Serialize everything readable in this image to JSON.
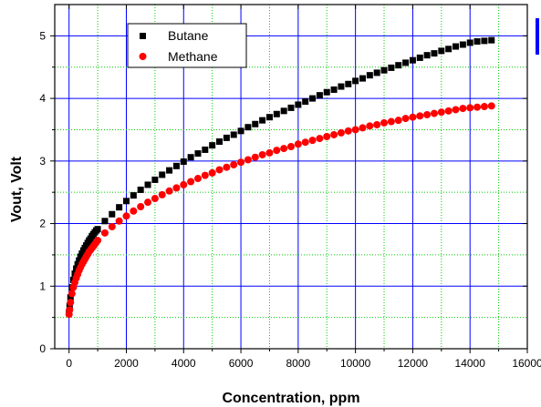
{
  "chart_data": {
    "type": "scatter",
    "title": "",
    "xlabel": "Concentration, ppm",
    "ylabel": "Vout, Volt",
    "xlim": [
      -500,
      16000
    ],
    "ylim": [
      0,
      5.5
    ],
    "x_ticks": [
      0,
      2000,
      4000,
      6000,
      8000,
      10000,
      12000,
      14000,
      16000
    ],
    "y_ticks": [
      0,
      1,
      2,
      3,
      4,
      5
    ],
    "grid": true,
    "legend_position": "top-left",
    "series": [
      {
        "name": "Butane",
        "color": "#000000",
        "marker": "square",
        "x": [
          0,
          20,
          50,
          100,
          150,
          200,
          250,
          300,
          350,
          400,
          450,
          500,
          550,
          600,
          650,
          700,
          750,
          800,
          850,
          900,
          950,
          1000,
          1250,
          1500,
          1750,
          2000,
          2250,
          2500,
          2750,
          3000,
          3250,
          3500,
          3750,
          4000,
          4250,
          4500,
          4750,
          5000,
          5250,
          5500,
          5750,
          6000,
          6250,
          6500,
          6750,
          7000,
          7250,
          7500,
          7750,
          8000,
          8250,
          8500,
          8750,
          9000,
          9250,
          9500,
          9750,
          10000,
          10250,
          10500,
          10750,
          11000,
          11250,
          11500,
          11750,
          12000,
          12250,
          12500,
          12750,
          13000,
          13250,
          13500,
          13750,
          14000,
          14250,
          14500,
          14750
        ],
        "y": [
          0.58,
          0.68,
          0.82,
          0.98,
          1.1,
          1.2,
          1.28,
          1.35,
          1.41,
          1.47,
          1.52,
          1.57,
          1.61,
          1.65,
          1.69,
          1.73,
          1.76,
          1.8,
          1.83,
          1.86,
          1.89,
          1.91,
          2.04,
          2.15,
          2.26,
          2.36,
          2.45,
          2.54,
          2.62,
          2.7,
          2.78,
          2.85,
          2.92,
          2.99,
          3.06,
          3.12,
          3.18,
          3.25,
          3.31,
          3.37,
          3.42,
          3.48,
          3.54,
          3.59,
          3.65,
          3.7,
          3.75,
          3.8,
          3.85,
          3.9,
          3.95,
          4.0,
          4.05,
          4.1,
          4.14,
          4.19,
          4.23,
          4.28,
          4.32,
          4.37,
          4.41,
          4.45,
          4.49,
          4.53,
          4.57,
          4.61,
          4.65,
          4.69,
          4.72,
          4.76,
          4.79,
          4.83,
          4.86,
          4.89,
          4.91,
          4.92,
          4.93
        ]
      },
      {
        "name": "Methane",
        "color": "#ff0000",
        "marker": "circle",
        "x": [
          0,
          20,
          50,
          100,
          150,
          200,
          250,
          300,
          350,
          400,
          450,
          500,
          550,
          600,
          650,
          700,
          750,
          800,
          850,
          900,
          950,
          1000,
          1250,
          1500,
          1750,
          2000,
          2250,
          2500,
          2750,
          3000,
          3250,
          3500,
          3750,
          4000,
          4250,
          4500,
          4750,
          5000,
          5250,
          5500,
          5750,
          6000,
          6250,
          6500,
          6750,
          7000,
          7250,
          7500,
          7750,
          8000,
          8250,
          8500,
          8750,
          9000,
          9250,
          9500,
          9750,
          10000,
          10250,
          10500,
          10750,
          11000,
          11250,
          11500,
          11750,
          12000,
          12250,
          12500,
          12750,
          13000,
          13250,
          13500,
          13750,
          14000,
          14250,
          14500,
          14750
        ],
        "y": [
          0.55,
          0.62,
          0.74,
          0.88,
          0.98,
          1.06,
          1.13,
          1.19,
          1.25,
          1.3,
          1.35,
          1.39,
          1.43,
          1.47,
          1.51,
          1.55,
          1.58,
          1.61,
          1.64,
          1.67,
          1.7,
          1.73,
          1.85,
          1.95,
          2.04,
          2.12,
          2.2,
          2.27,
          2.34,
          2.4,
          2.46,
          2.52,
          2.57,
          2.62,
          2.67,
          2.72,
          2.77,
          2.81,
          2.86,
          2.9,
          2.94,
          2.98,
          3.02,
          3.06,
          3.1,
          3.13,
          3.17,
          3.2,
          3.23,
          3.27,
          3.3,
          3.33,
          3.36,
          3.39,
          3.42,
          3.45,
          3.48,
          3.5,
          3.53,
          3.56,
          3.58,
          3.61,
          3.63,
          3.65,
          3.68,
          3.7,
          3.72,
          3.74,
          3.76,
          3.78,
          3.8,
          3.82,
          3.84,
          3.85,
          3.86,
          3.87,
          3.88
        ]
      }
    ]
  },
  "colors": {
    "grid_vertical": "#00cc00",
    "grid_horizontal": "#0000ff",
    "axis": "#000000",
    "side_marker": "#0000ff"
  }
}
